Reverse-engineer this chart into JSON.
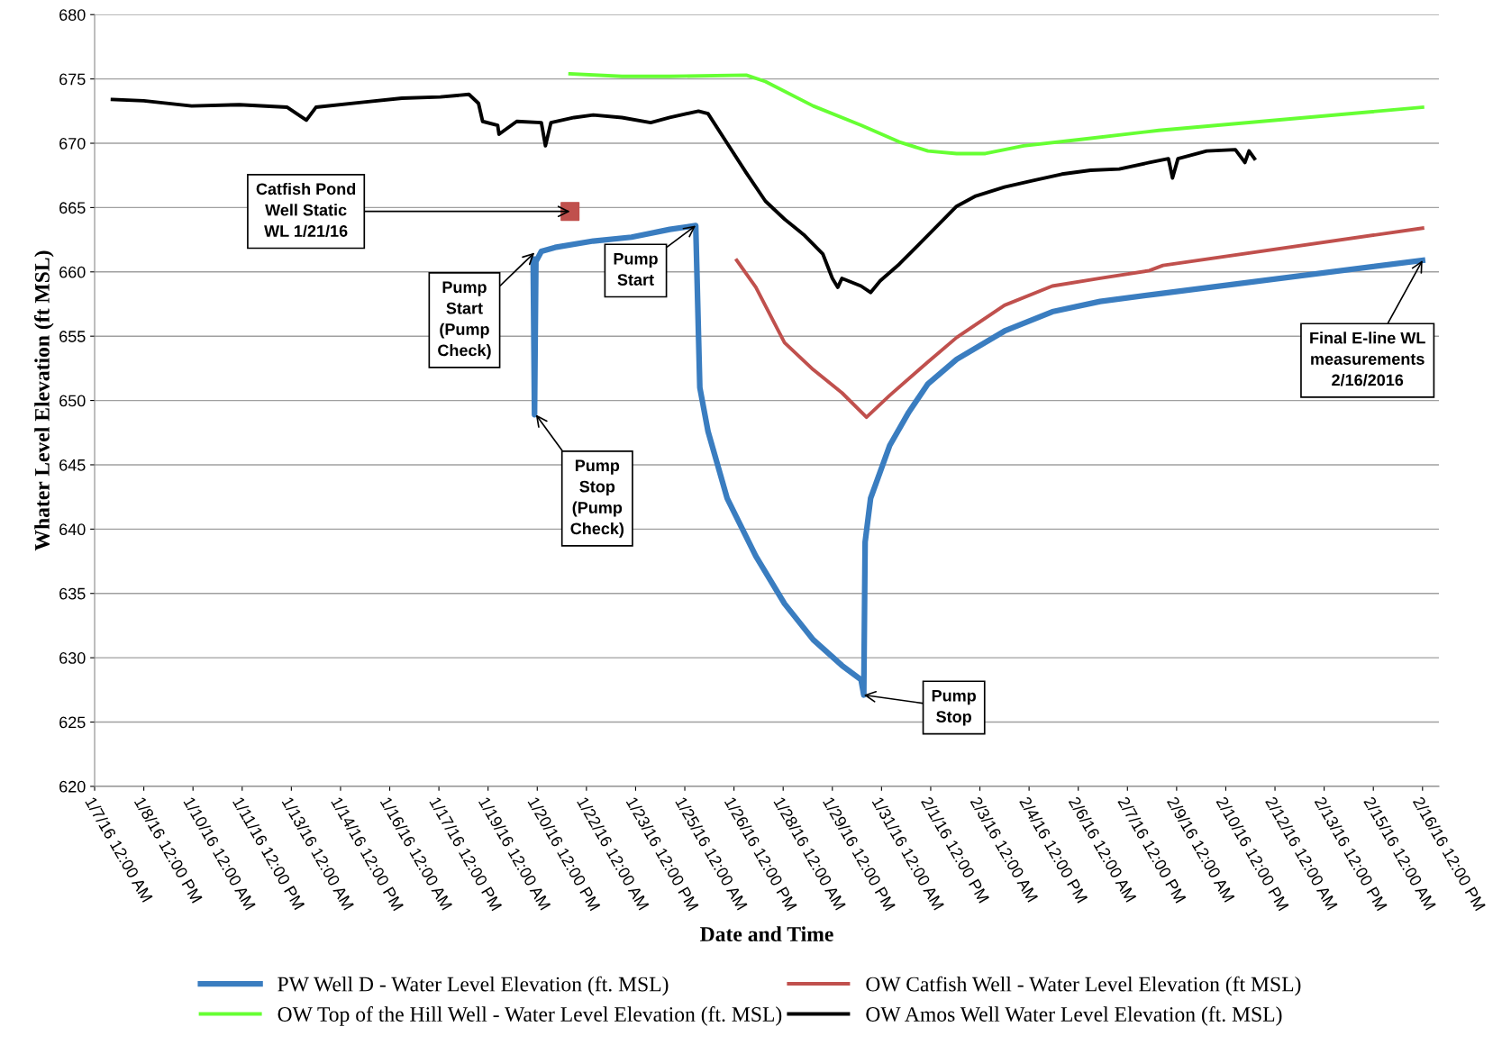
{
  "chart_data": {
    "type": "line",
    "xlabel": "Date and Time",
    "ylabel": "Whater Level Elevation (ft MSL)",
    "xlim": [
      "2016-01-07T00:00",
      "2016-02-17T00:00"
    ],
    "xticks": [
      {
        "value": "2016-01-07T00:00",
        "label": "1/7/16 12:00 AM"
      },
      {
        "value": "2016-01-08T12:00",
        "label": "1/8/16 12:00 PM"
      },
      {
        "value": "2016-01-10T00:00",
        "label": "1/10/16 12:00 AM"
      },
      {
        "value": "2016-01-11T12:00",
        "label": "1/11/16 12:00 PM"
      },
      {
        "value": "2016-01-13T00:00",
        "label": "1/13/16 12:00 AM"
      },
      {
        "value": "2016-01-14T12:00",
        "label": "1/14/16 12:00 PM"
      },
      {
        "value": "2016-01-16T00:00",
        "label": "1/16/16 12:00 AM"
      },
      {
        "value": "2016-01-17T12:00",
        "label": "1/17/16 12:00 PM"
      },
      {
        "value": "2016-01-19T00:00",
        "label": "1/19/16 12:00 AM"
      },
      {
        "value": "2016-01-20T12:00",
        "label": "1/20/16 12:00 PM"
      },
      {
        "value": "2016-01-22T00:00",
        "label": "1/22/16 12:00 AM"
      },
      {
        "value": "2016-01-23T12:00",
        "label": "1/23/16 12:00 PM"
      },
      {
        "value": "2016-01-25T00:00",
        "label": "1/25/16 12:00 AM"
      },
      {
        "value": "2016-01-26T12:00",
        "label": "1/26/16 12:00 PM"
      },
      {
        "value": "2016-01-28T00:00",
        "label": "1/28/16 12:00 AM"
      },
      {
        "value": "2016-01-29T12:00",
        "label": "1/29/16 12:00 PM"
      },
      {
        "value": "2016-01-31T00:00",
        "label": "1/31/16 12:00 AM"
      },
      {
        "value": "2016-02-01T12:00",
        "label": "2/1/16 12:00 PM"
      },
      {
        "value": "2016-02-03T00:00",
        "label": "2/3/16 12:00 AM"
      },
      {
        "value": "2016-02-04T12:00",
        "label": "2/4/16 12:00 PM"
      },
      {
        "value": "2016-02-06T00:00",
        "label": "2/6/16 12:00 AM"
      },
      {
        "value": "2016-02-07T12:00",
        "label": "2/7/16 12:00 PM"
      },
      {
        "value": "2016-02-09T00:00",
        "label": "2/9/16 12:00 AM"
      },
      {
        "value": "2016-02-10T12:00",
        "label": "2/10/16 12:00 PM"
      },
      {
        "value": "2016-02-12T00:00",
        "label": "2/12/16 12:00 AM"
      },
      {
        "value": "2016-02-13T12:00",
        "label": "2/13/16 12:00 PM"
      },
      {
        "value": "2016-02-15T00:00",
        "label": "2/15/16 12:00 AM"
      },
      {
        "value": "2016-02-16T12:00",
        "label": "2/16/16 12:00 PM"
      }
    ],
    "ylim": [
      620,
      680
    ],
    "yticks": [
      620,
      625,
      630,
      635,
      640,
      645,
      650,
      655,
      660,
      665,
      670,
      675,
      680
    ],
    "grid": "y",
    "legend": "bottom",
    "marker": "none",
    "line_style": "solid",
    "series": [
      {
        "name": "PW Well D - Water Level Elevation (ft. MSL)",
        "color": "#3a7dc0",
        "x": [
          "2016-01-20T09:00",
          "2016-01-20T10:00",
          "2016-01-20T11:00",
          "2016-01-20T15:00",
          "2016-01-21T01:00",
          "2016-01-22T05:00",
          "2016-01-23T09:00",
          "2016-01-24T13:00",
          "2016-01-25T08:00",
          "2016-01-25T11:00",
          "2016-01-25T17:00",
          "2016-01-26T07:00",
          "2016-01-27T04:00",
          "2016-01-28T01:00",
          "2016-01-28T22:00",
          "2016-01-29T19:00",
          "2016-01-30T09:00",
          "2016-01-30T11:00",
          "2016-01-30T12:00",
          "2016-01-30T16:00",
          "2016-01-31T06:00",
          "2016-01-31T20:00",
          "2016-02-01T10:00",
          "2016-02-02T07:00",
          "2016-02-03T18:00",
          "2016-02-05T05:00",
          "2016-02-06T16:00",
          "2016-02-08T11:00",
          "2016-02-16T12:00"
        ],
        "values": [
          661.0,
          648.9,
          660.8,
          661.6,
          661.9,
          662.4,
          662.7,
          663.3,
          663.6,
          651.0,
          647.6,
          642.4,
          637.9,
          634.2,
          631.4,
          629.4,
          628.3,
          627.1,
          639.0,
          642.4,
          646.5,
          649.1,
          651.3,
          653.2,
          655.4,
          656.9,
          657.7,
          658.3,
          660.9
        ]
      },
      {
        "name": "OW Catfish Well - Water Level Elevation (ft MSL)",
        "color": "#c0504d",
        "x": [
          "2016-01-26T14:00",
          "2016-01-27T04:00",
          "2016-01-28T01:00",
          "2016-01-28T22:00",
          "2016-01-29T19:00",
          "2016-01-30T13:00",
          "2016-01-31T06:00",
          "2016-02-01T10:00",
          "2016-02-02T07:00",
          "2016-02-03T18:00",
          "2016-02-05T05:00",
          "2016-02-06T16:00",
          "2016-02-08T04:00",
          "2016-02-08T14:00",
          "2016-02-16T12:00"
        ],
        "values": [
          660.9,
          658.8,
          654.5,
          652.4,
          650.6,
          648.7,
          650.4,
          653.0,
          654.9,
          657.4,
          658.9,
          659.5,
          660.1,
          660.5,
          663.4
        ]
      },
      {
        "name": "OW Top of the Hill Well - Water Level Elevation (ft. MSL)",
        "color": "#66ff33",
        "x": [
          "2016-01-21T12:00",
          "2016-01-23T02:00",
          "2016-01-24T13:00",
          "2016-01-26T21:00",
          "2016-01-27T11:00",
          "2016-01-28T22:00",
          "2016-01-30T09:00",
          "2016-01-31T13:00",
          "2016-02-01T10:00",
          "2016-02-02T07:00",
          "2016-02-03T04:00",
          "2016-02-04T08:00",
          "2016-02-06T02:00",
          "2016-02-08T11:00",
          "2016-02-16T12:00"
        ],
        "values": [
          675.4,
          675.2,
          675.2,
          675.3,
          674.8,
          672.9,
          671.4,
          670.1,
          669.4,
          669.2,
          669.2,
          669.8,
          670.3,
          671.0,
          672.8
        ]
      },
      {
        "name": "OW Amos Well Water Level Elevation (ft. MSL)",
        "color": "#000000",
        "x": [
          "2016-01-07T13:00",
          "2016-01-08T12:00",
          "2016-01-09T23:00",
          "2016-01-11T10:00",
          "2016-01-12T21:00",
          "2016-01-13T11:00",
          "2016-01-13T18:00",
          "2016-01-15T05:00",
          "2016-01-16T09:00",
          "2016-01-17T13:00",
          "2016-01-18T10:00",
          "2016-01-18T17:00",
          "2016-01-18T20:00",
          "2016-01-19T07:00",
          "2016-01-19T08:00",
          "2016-01-19T21:00",
          "2016-01-20T15:00",
          "2016-01-20T18:00",
          "2016-01-20T22:00",
          "2016-01-21T15:00",
          "2016-01-22T05:00",
          "2016-01-23T02:00",
          "2016-01-23T23:00",
          "2016-01-24T13:00",
          "2016-01-25T10:00",
          "2016-01-25T17:00",
          "2016-01-26T07:00",
          "2016-01-26T21:00",
          "2016-01-27T11:00",
          "2016-01-28T01:00",
          "2016-01-28T15:00",
          "2016-01-29T05:00",
          "2016-01-29T12:00",
          "2016-01-29T16:00",
          "2016-01-29T19:00",
          "2016-01-30T09:00",
          "2016-01-30T16:00",
          "2016-01-30T23:00",
          "2016-01-31T13:00",
          "2016-02-01T03:00",
          "2016-02-01T17:00",
          "2016-02-02T07:00",
          "2016-02-02T21:00",
          "2016-02-03T18:00",
          "2016-02-04T15:00",
          "2016-02-05T12:00",
          "2016-02-06T09:00",
          "2016-02-07T06:00",
          "2016-02-08T04:00",
          "2016-02-08T18:00",
          "2016-02-08T21:00",
          "2016-02-09T01:00",
          "2016-02-09T22:00",
          "2016-02-10T19:00",
          "2016-02-11T02:00",
          "2016-02-11T05:00",
          "2016-02-11T09:00"
        ],
        "values": [
          673.4,
          673.3,
          672.9,
          673.0,
          672.8,
          671.8,
          672.8,
          673.2,
          673.5,
          673.6,
          673.8,
          673.1,
          671.7,
          671.4,
          670.7,
          671.7,
          671.6,
          669.8,
          671.6,
          672.0,
          672.2,
          672.0,
          671.6,
          672.0,
          672.5,
          672.3,
          670.0,
          667.7,
          665.5,
          664.1,
          662.9,
          661.4,
          659.5,
          658.8,
          659.5,
          658.9,
          658.4,
          659.3,
          660.6,
          662.1,
          663.6,
          665.1,
          665.9,
          666.6,
          667.1,
          667.6,
          667.9,
          668.0,
          668.5,
          668.8,
          667.3,
          668.8,
          669.4,
          669.5,
          668.5,
          669.4,
          668.8
        ]
      },
      {
        "type": "scatter",
        "marker": "square",
        "color": "#c0504d",
        "x": [
          "2016-01-21T12:00"
        ],
        "values": [
          664.7
        ]
      }
    ],
    "annotations": [
      {
        "text": "Catfish Pond\nWell Static\nWL 1/21/16",
        "x": "2016-01-21T12:00",
        "y": 664.7
      },
      {
        "text": "Pump\nStart\n(Pump\nCheck)",
        "x": "2016-01-20T10:00",
        "y": 661.5
      },
      {
        "text": "Pump\nStart",
        "x": "2016-01-25T08:00",
        "y": 663.6
      },
      {
        "text": "Pump\nStop\n(Pump\nCheck)",
        "x": "2016-01-20T11:00",
        "y": 648.9
      },
      {
        "text": "Pump\nStop",
        "x": "2016-01-30T11:00",
        "y": 627.1
      },
      {
        "text": "Final E-line WL\nmeasurements\n2/16/2016",
        "x": "2016-02-16T12:00",
        "y": 660.9
      }
    ]
  }
}
